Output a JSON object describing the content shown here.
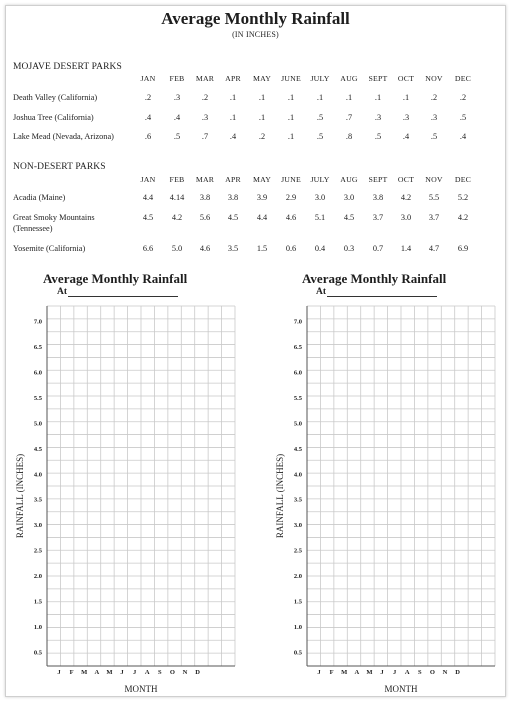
{
  "title": "Average Monthly Rainfall",
  "subtitle": "(IN INCHES)",
  "months": [
    "JAN",
    "FEB",
    "MAR",
    "APR",
    "MAY",
    "JUNE",
    "JULY",
    "AUG",
    "SEPT",
    "OCT",
    "NOV",
    "DEC"
  ],
  "mojave": {
    "heading": "MOJAVE DESERT PARKS",
    "rows": [
      {
        "name": "Death Valley (California)",
        "values": [
          ".2",
          ".3",
          ".2",
          ".1",
          ".1",
          ".1",
          ".1",
          ".1",
          ".1",
          ".1",
          ".2",
          ".2"
        ]
      },
      {
        "name": "Joshua Tree (California)",
        "values": [
          ".4",
          ".4",
          ".3",
          ".1",
          ".1",
          ".1",
          ".5",
          ".7",
          ".3",
          ".3",
          ".3",
          ".5"
        ]
      },
      {
        "name": "Lake Mead (Nevada, Arizona)",
        "values": [
          ".6",
          ".5",
          ".7",
          ".4",
          ".2",
          ".1",
          ".5",
          ".8",
          ".5",
          ".4",
          ".5",
          ".4"
        ]
      }
    ]
  },
  "nondesert": {
    "heading": "NON-DESERT PARKS",
    "rows": [
      {
        "name": "Acadia (Maine)",
        "values": [
          "4.4",
          "4.14",
          "3.8",
          "3.8",
          "3.9",
          "2.9",
          "3.0",
          "3.0",
          "3.8",
          "4.2",
          "5.5",
          "5.2"
        ]
      },
      {
        "name": "Great Smoky Mountains",
        "name2": "(Tennessee)",
        "values": [
          "4.5",
          "4.2",
          "5.6",
          "4.5",
          "4.4",
          "4.6",
          "5.1",
          "4.5",
          "3.7",
          "3.0",
          "3.7",
          "4.2"
        ]
      },
      {
        "name": "Yosemite (California)",
        "values": [
          "6.6",
          "5.0",
          "4.6",
          "3.5",
          "1.5",
          "0.6",
          "0.4",
          "0.3",
          "0.7",
          "1.4",
          "4.7",
          "6.9"
        ]
      }
    ]
  },
  "charts": [
    {
      "title": "Average Monthly Rainfall",
      "at_label": "At"
    },
    {
      "title": "Average Monthly Rainfall",
      "at_label": "At"
    }
  ],
  "chart_data": [
    {
      "type": "line",
      "title": "Average Monthly Rainfall",
      "xlabel": "MONTH",
      "ylabel": "RAINFALL (INCHES)",
      "x_ticks": [
        "J",
        "F",
        "M",
        "A",
        "M",
        "J",
        "J",
        "A",
        "S",
        "O",
        "N",
        "D"
      ],
      "y_ticks": [
        "0.5",
        "1.0",
        "1.5",
        "2.0",
        "2.5",
        "3.0",
        "3.5",
        "4.0",
        "4.5",
        "5.0",
        "5.5",
        "6.0",
        "6.5",
        "7.0"
      ],
      "ylim": [
        0.5,
        7.0
      ],
      "grid": true,
      "series": []
    },
    {
      "type": "line",
      "title": "Average Monthly Rainfall",
      "xlabel": "MONTH",
      "ylabel": "RAINFALL (INCHES)",
      "x_ticks": [
        "J",
        "F",
        "M",
        "A",
        "M",
        "J",
        "J",
        "A",
        "S",
        "O",
        "N",
        "D"
      ],
      "y_ticks": [
        "0.5",
        "1.0",
        "1.5",
        "2.0",
        "2.5",
        "3.0",
        "3.5",
        "4.0",
        "4.5",
        "5.0",
        "5.5",
        "6.0",
        "6.5",
        "7.0"
      ],
      "ylim": [
        0.5,
        7.0
      ],
      "grid": true,
      "series": []
    }
  ],
  "colors": {
    "ink": "#1e1e1e",
    "grid": "#c9c9c9",
    "border": "#cfcfcf"
  }
}
